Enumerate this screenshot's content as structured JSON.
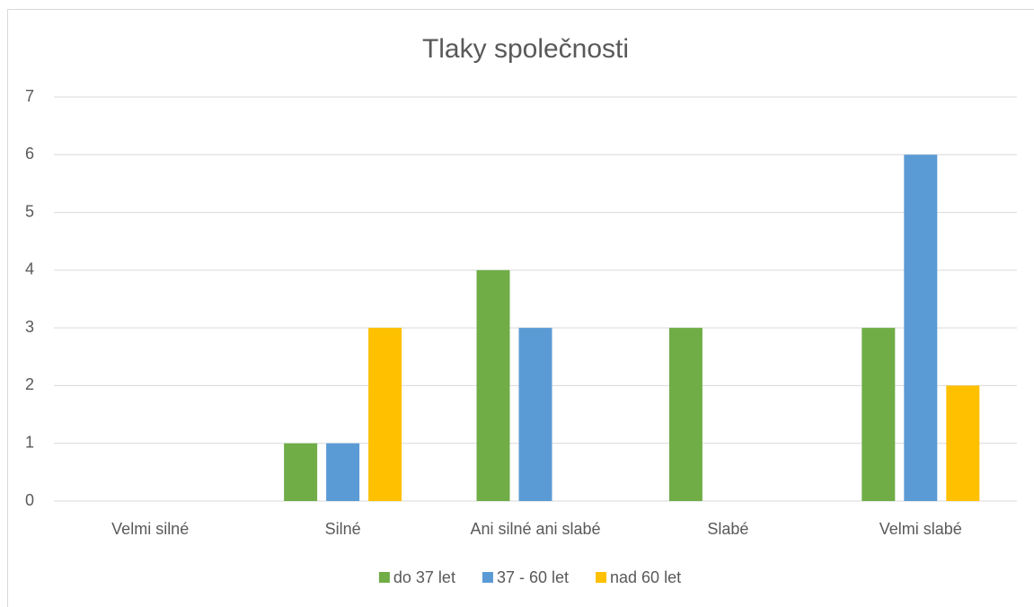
{
  "chart_data": {
    "type": "bar",
    "title": "Tlaky společnosti",
    "categories": [
      "Velmi silné",
      "Silné",
      "Ani silné ani slabé",
      "Slabé",
      "Velmi slabé"
    ],
    "series": [
      {
        "name": "do 37 let",
        "color": "#70ad47",
        "values": [
          0,
          1,
          4,
          3,
          3
        ]
      },
      {
        "name": "37 - 60 let",
        "color": "#5b9bd5",
        "values": [
          0,
          1,
          3,
          0,
          6
        ]
      },
      {
        "name": "nad 60 let",
        "color": "#ffc000",
        "values": [
          0,
          3,
          0,
          0,
          2
        ]
      }
    ],
    "ylim": [
      0,
      7
    ],
    "yticks": [
      0,
      1,
      2,
      3,
      4,
      5,
      6,
      7
    ],
    "grid": true,
    "legend": "bottom"
  }
}
